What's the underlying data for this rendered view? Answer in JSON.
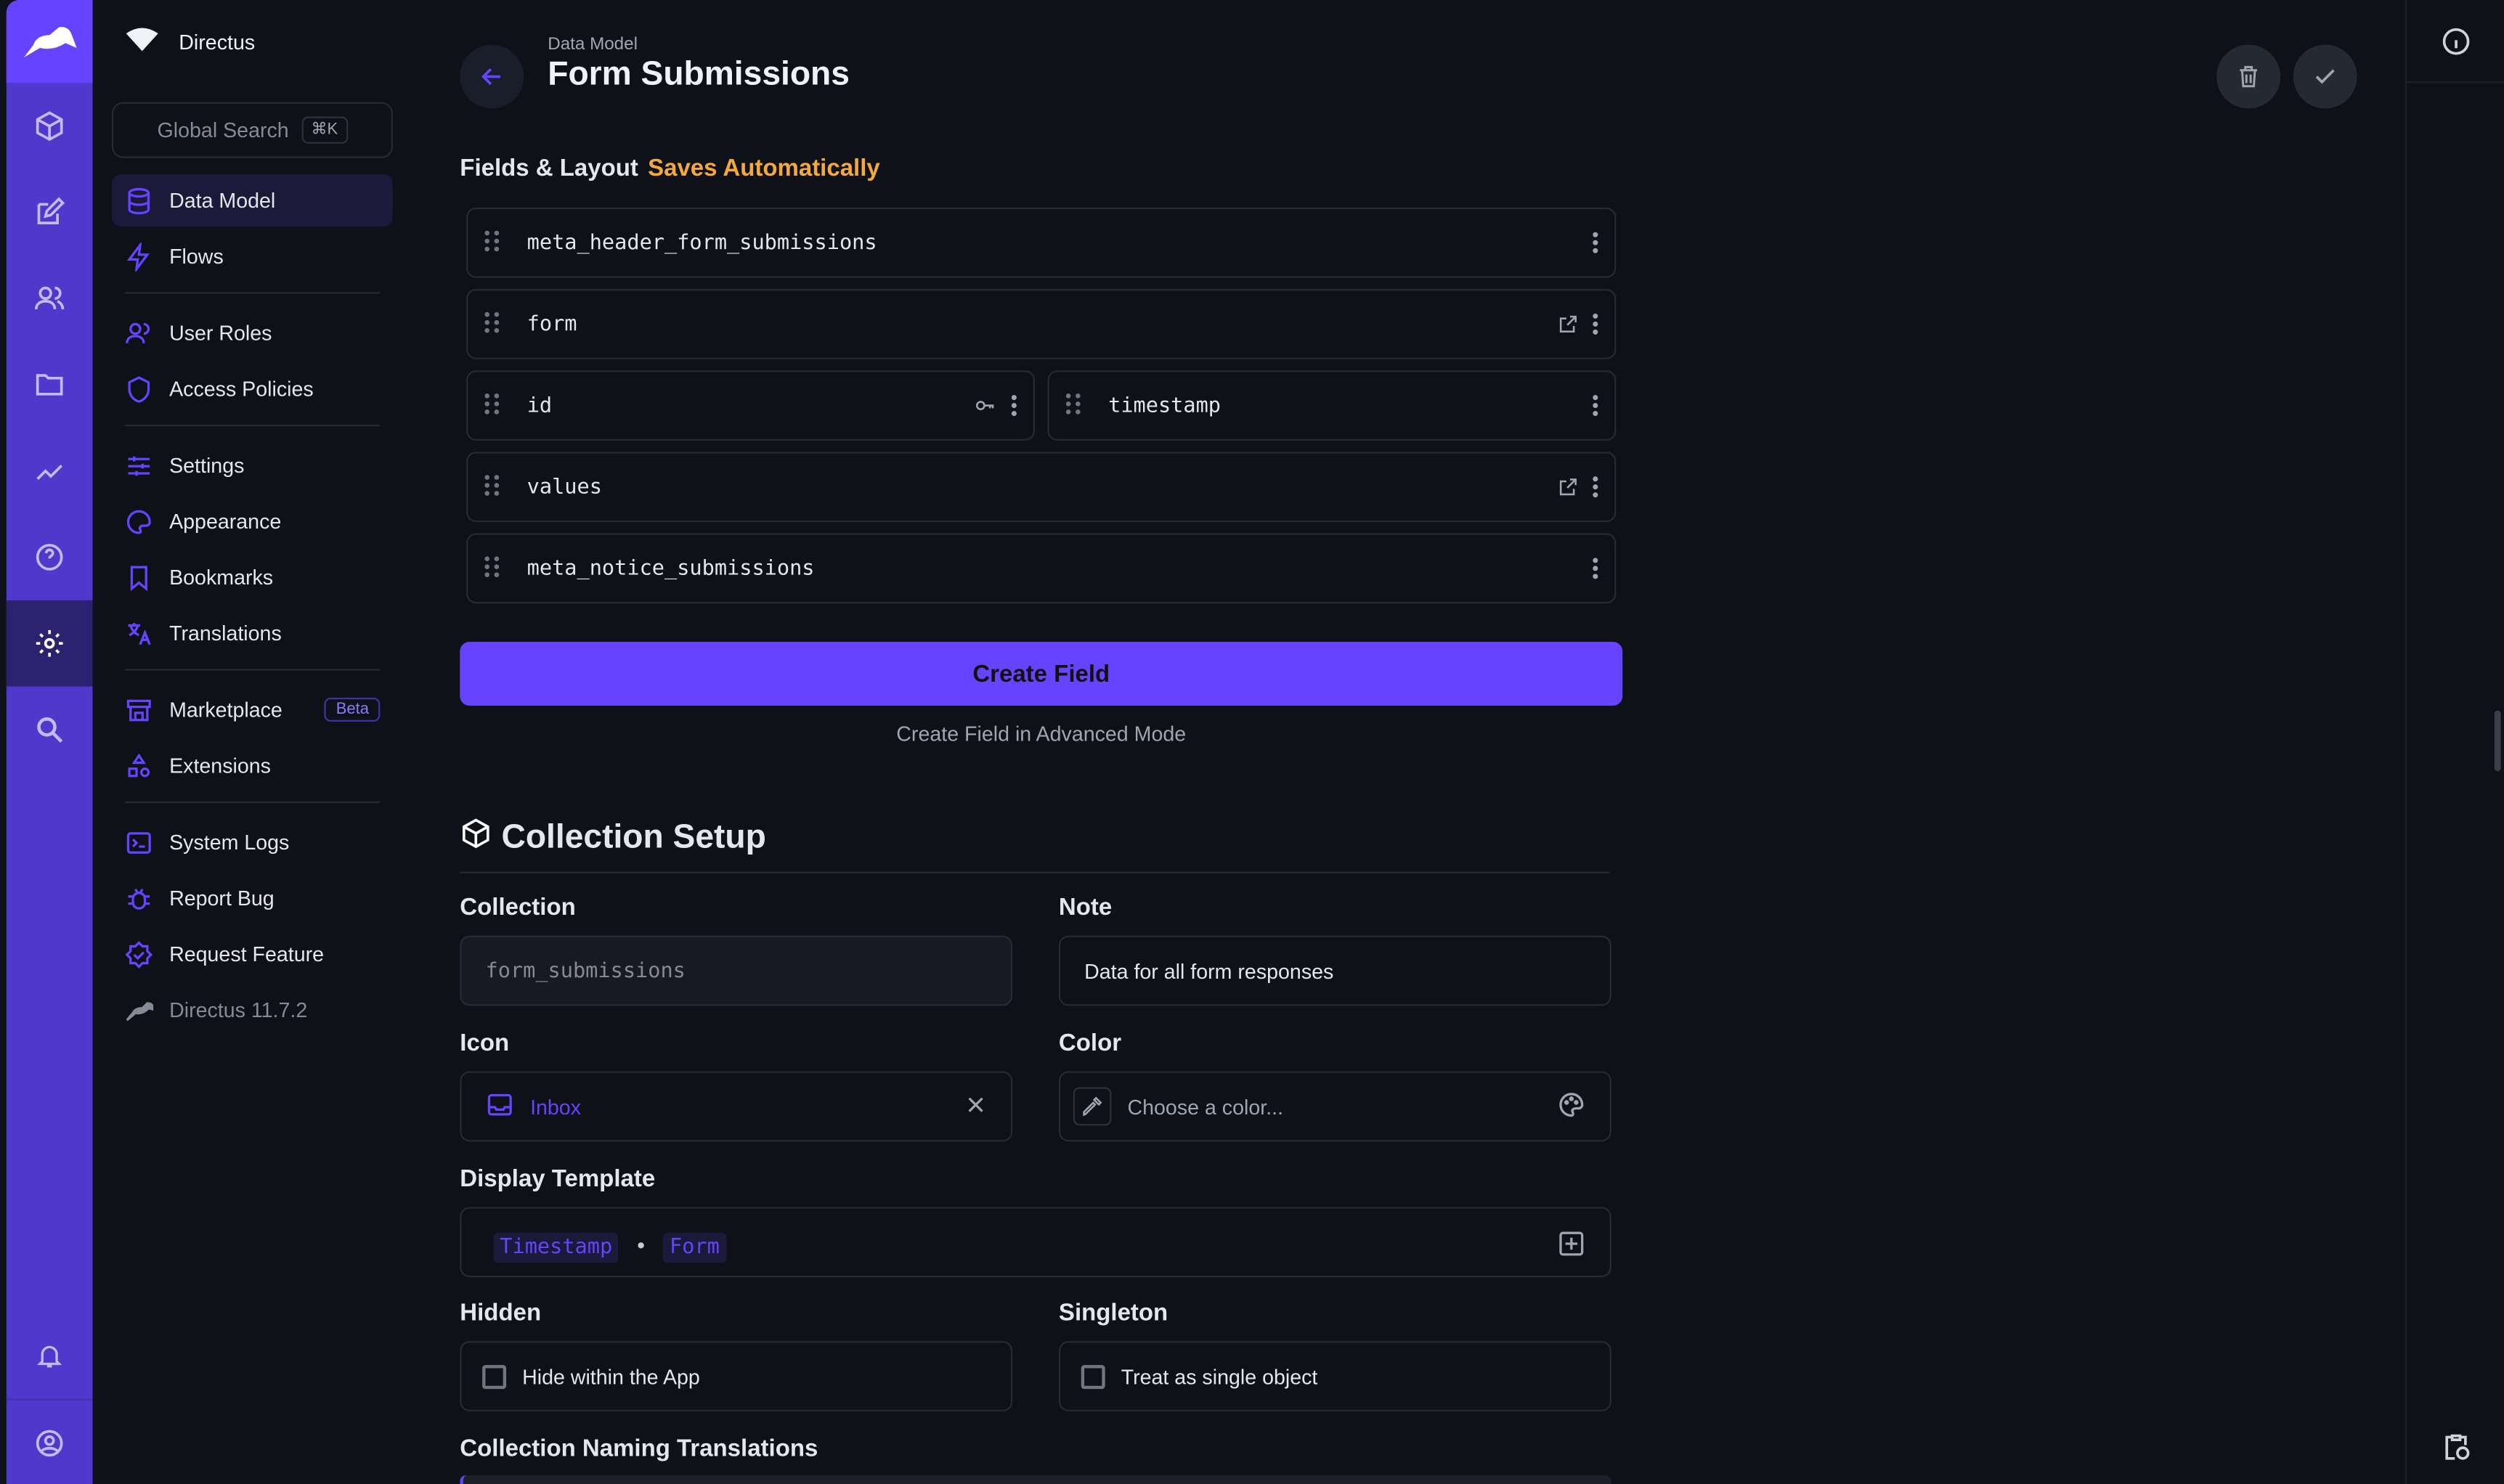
{
  "app": {
    "name": "Directus",
    "search_label": "Global Search",
    "search_shortcut": "⌘K",
    "accent": "#6644ff"
  },
  "rail": {
    "items": [
      "content",
      "library",
      "users",
      "files",
      "insights",
      "help",
      "settings",
      "search"
    ],
    "bottom": [
      "notifications",
      "user"
    ]
  },
  "nav": {
    "items": [
      {
        "label": "Data Model",
        "icon": "database-icon",
        "active": true
      },
      {
        "label": "Flows",
        "icon": "bolt-icon"
      },
      {
        "label": "User Roles",
        "icon": "users-icon"
      },
      {
        "label": "Access Policies",
        "icon": "shield-icon"
      },
      {
        "label": "Settings",
        "icon": "sliders-icon"
      },
      {
        "label": "Appearance",
        "icon": "palette-icon"
      },
      {
        "label": "Bookmarks",
        "icon": "bookmark-icon"
      },
      {
        "label": "Translations",
        "icon": "translate-icon"
      },
      {
        "label": "Marketplace",
        "icon": "store-icon",
        "badge": "Beta"
      },
      {
        "label": "Extensions",
        "icon": "extensions-icon"
      },
      {
        "label": "System Logs",
        "icon": "terminal-icon"
      },
      {
        "label": "Report Bug",
        "icon": "bug-icon"
      },
      {
        "label": "Request Feature",
        "icon": "verified-icon"
      },
      {
        "label": "Directus 11.7.2",
        "icon": "rabbit-icon"
      }
    ]
  },
  "header": {
    "breadcrumb": "Data Model",
    "title": "Form Submissions"
  },
  "fields": {
    "title": "Fields & Layout",
    "status": "Saves Automatically",
    "rows": [
      {
        "name": "meta_header_form_submissions"
      },
      {
        "name": "form",
        "link": true
      },
      {
        "name": "id",
        "key": true
      },
      {
        "name": "timestamp"
      },
      {
        "name": "values",
        "link": true
      },
      {
        "name": "meta_notice_submissions"
      }
    ],
    "create_label": "Create Field",
    "advanced_label": "Create Field in Advanced Mode"
  },
  "setup": {
    "title": "Collection Setup",
    "collection": {
      "label": "Collection",
      "value": "form_submissions"
    },
    "note": {
      "label": "Note",
      "value": "Data for all form responses"
    },
    "icon": {
      "label": "Icon",
      "value": "Inbox"
    },
    "color": {
      "label": "Color",
      "placeholder": "Choose a color..."
    },
    "display_template": {
      "label": "Display Template",
      "tags": [
        "Timestamp",
        "Form"
      ],
      "separator": "•"
    },
    "hidden": {
      "label": "Hidden",
      "option": "Hide within the App",
      "checked": false
    },
    "singleton": {
      "label": "Singleton",
      "option": "Treat as single object",
      "checked": false
    },
    "translations": {
      "label": "Collection Naming Translations"
    }
  }
}
